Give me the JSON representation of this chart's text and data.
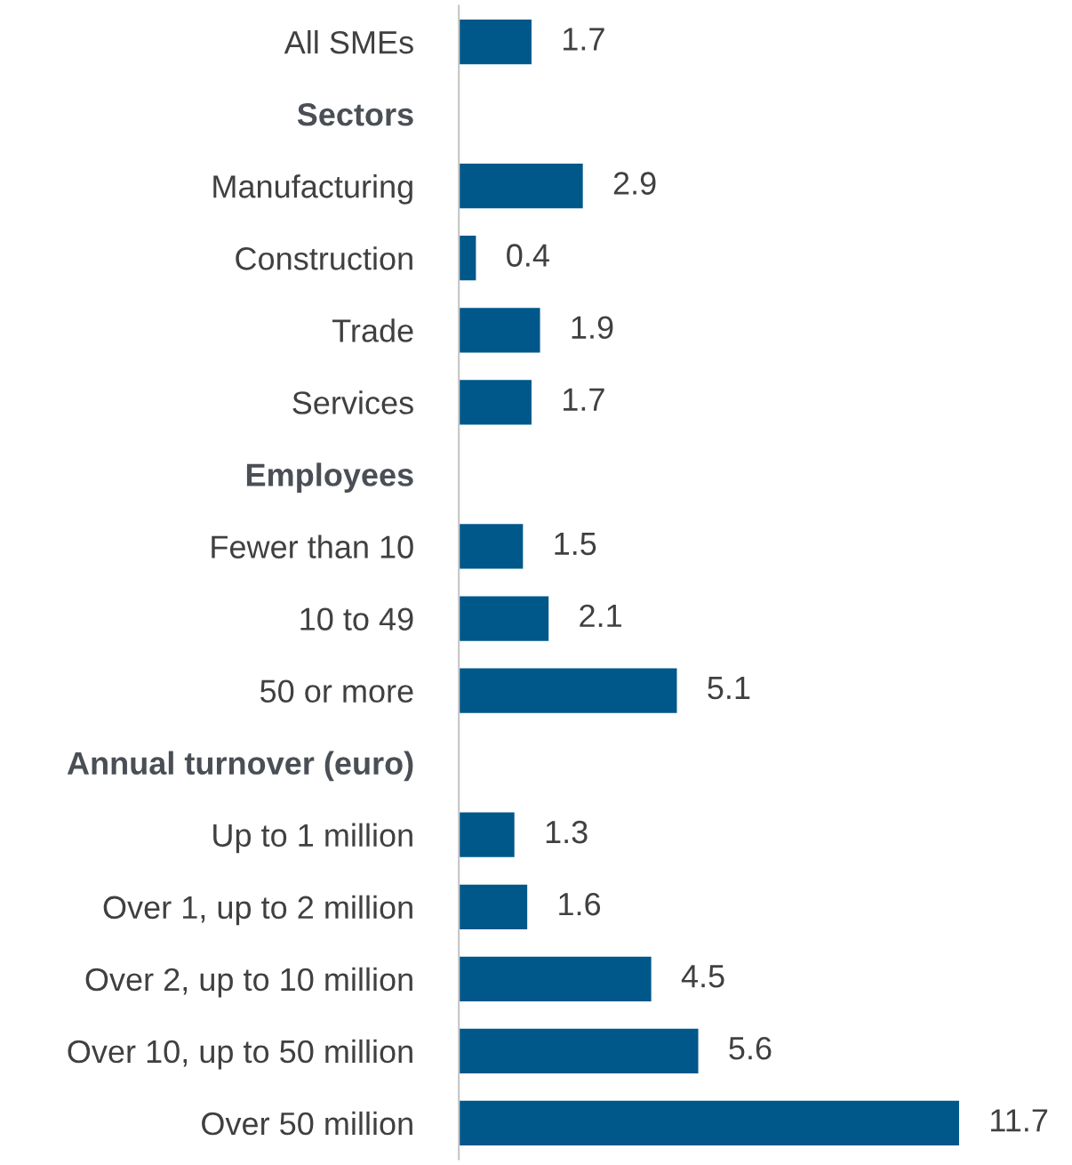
{
  "chart_data": {
    "type": "bar",
    "orientation": "horizontal",
    "categories": [
      "All SMEs",
      "Sectors",
      "Manufacturing",
      "Construction",
      "Trade",
      "Services",
      "Employees",
      "Fewer than 10",
      "10 to 49",
      "50 or more",
      "Annual turnover (euro)",
      "Up to 1 million",
      "Over 1, up to 2 million",
      "Over 2, up to 10 million",
      "Over 10, up to 50 million",
      "Over 50 million"
    ],
    "values": [
      1.7,
      null,
      2.9,
      0.4,
      1.9,
      1.7,
      null,
      1.5,
      2.1,
      5.1,
      null,
      1.3,
      1.6,
      4.5,
      5.6,
      11.7
    ],
    "color": "#00578a",
    "data_labels": true,
    "tick_labels": "y",
    "grid": false,
    "legend": false
  }
}
